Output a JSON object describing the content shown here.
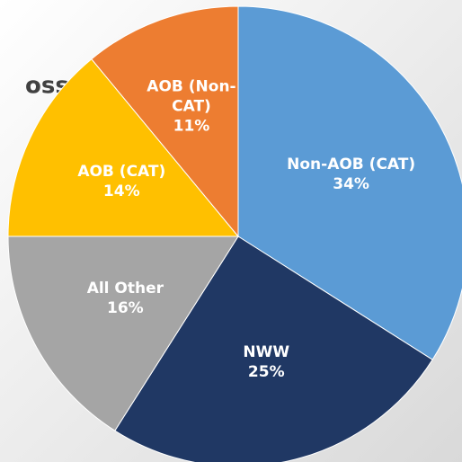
{
  "fragment": "oss",
  "chart_data": {
    "type": "pie",
    "categories": [
      "Non-AOB (CAT)",
      "NWW",
      "All Other",
      "AOB (CAT)",
      "AOB (Non-CAT)"
    ],
    "values": [
      34,
      25,
      16,
      14,
      11
    ],
    "value_labels": [
      "34%",
      "25%",
      "16%",
      "14%",
      "11%"
    ],
    "colors": [
      "#5b9bd5",
      "#203864",
      "#a5a5a5",
      "#ffc000",
      "#ed7d31"
    ]
  }
}
